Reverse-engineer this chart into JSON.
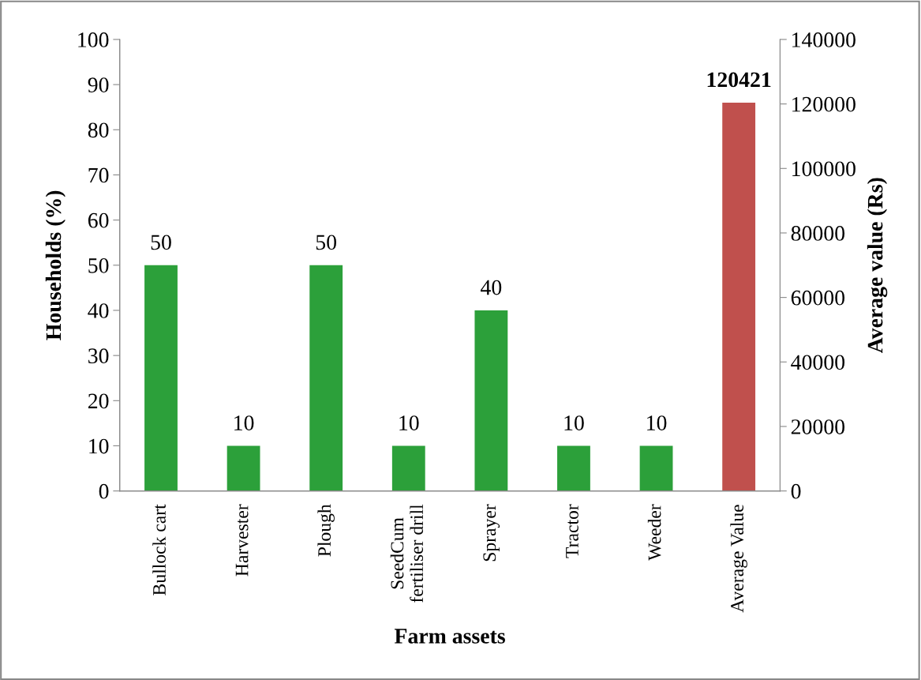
{
  "chart_data": {
    "type": "bar",
    "xlabel": "Farm assets",
    "ylabel": "Households (%)",
    "y2label": "Average value (Rs)",
    "categories": [
      "Bullock cart",
      "Harvester",
      "Plough",
      "SeedCum\nfertiliser drill",
      "Sprayer",
      "Tractor",
      "Weeder",
      "Average Value"
    ],
    "series": [
      {
        "color": "#2ca03a",
        "values": [
          50,
          10,
          50,
          10,
          40,
          10,
          10,
          null
        ]
      },
      {
        "color": "#c0504d",
        "axis": "y2",
        "values": [
          null,
          null,
          null,
          null,
          null,
          null,
          null,
          120421
        ]
      }
    ],
    "ylim": [
      0,
      100
    ],
    "yticks": [
      0,
      10,
      20,
      30,
      40,
      50,
      60,
      70,
      80,
      90,
      100
    ],
    "y2lim": [
      0,
      140000
    ],
    "y2ticks": [
      0,
      20000,
      40000,
      60000,
      80000,
      100000,
      120000,
      140000
    ],
    "data_labels": true,
    "grid": false,
    "legend": false
  }
}
